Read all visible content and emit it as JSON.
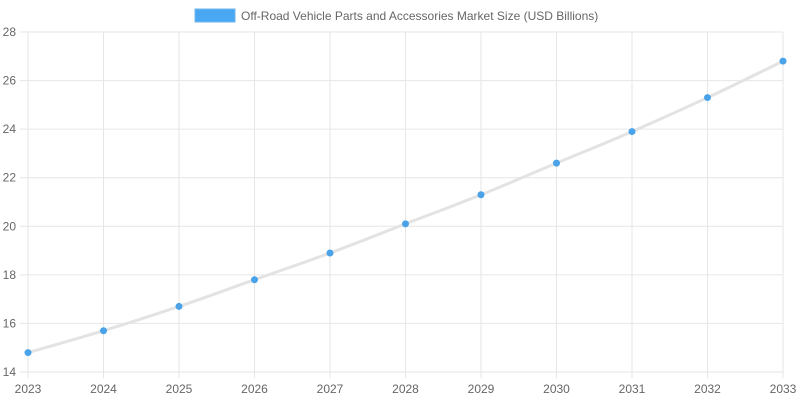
{
  "chart_data": {
    "type": "line",
    "title": "",
    "xlabel": "",
    "ylabel": "",
    "x": [
      "2023",
      "2024",
      "2025",
      "2026",
      "2027",
      "2028",
      "2029",
      "2030",
      "2031",
      "2032",
      "2033"
    ],
    "series": [
      {
        "name": "Off-Road Vehicle Parts and Accessories Market Size (USD Billions)",
        "values": [
          14.8,
          15.7,
          16.7,
          17.8,
          18.9,
          20.1,
          21.3,
          22.6,
          23.9,
          25.3,
          26.8
        ]
      }
    ],
    "ylim": [
      14,
      28
    ],
    "yticks": [
      "14",
      "16",
      "18",
      "20",
      "22",
      "24",
      "26",
      "28"
    ],
    "grid": true,
    "legend_position": "top-center",
    "colors": {
      "legend_swatch_fill": "#4aa8f2",
      "legend_swatch_border": "#6fb6ee",
      "line": "#e3e3e3",
      "point": "#4aa3e8",
      "grid": "#e6e6e6",
      "axis_text": "#666666",
      "legend_text": "#666666"
    }
  }
}
